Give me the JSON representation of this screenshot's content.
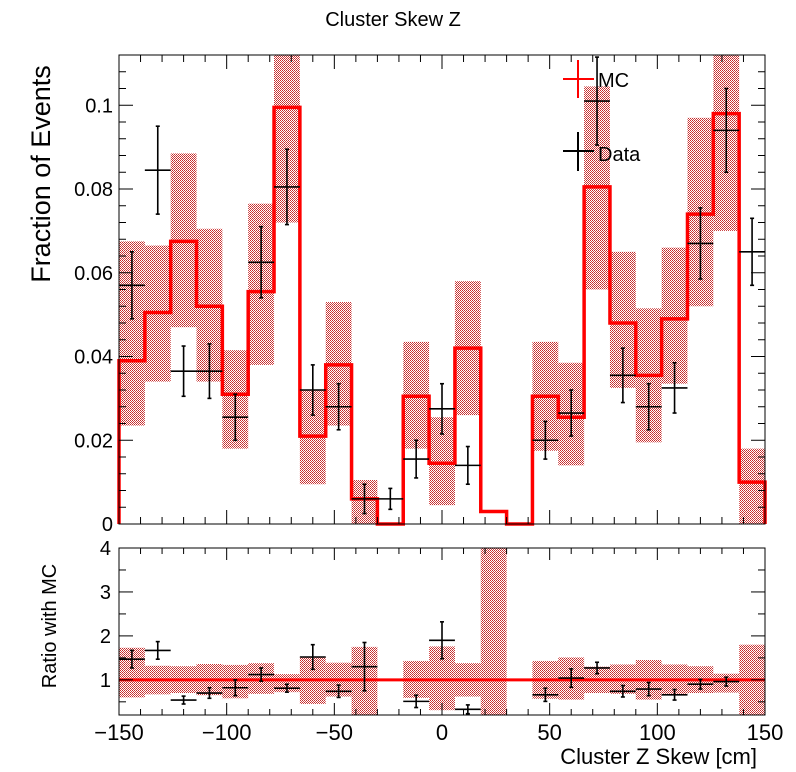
{
  "chart_data": {
    "type": "bar",
    "title": "Cluster Skew Z",
    "xlabel": "Cluster Z Skew [cm]",
    "xlim": [
      -150,
      150
    ],
    "bin_edges": [
      -150,
      -138,
      -126,
      -114,
      -102,
      -90,
      -78,
      -66,
      -54,
      -42,
      -30,
      -18,
      -6,
      6,
      18,
      30,
      42,
      54,
      66,
      78,
      90,
      102,
      114,
      126,
      138,
      150
    ],
    "main_panel": {
      "ylabel": "Fraction of Events",
      "ylim": [
        0,
        0.112
      ],
      "y_ticks": [
        0,
        0.02,
        0.04,
        0.06,
        0.08,
        0.1
      ],
      "y_tick_labels": [
        "0",
        "0.02",
        "0.04",
        "0.06",
        "0.08",
        "0.1"
      ],
      "legend_position": "top-right",
      "series": [
        {
          "name": "MC",
          "style": "histogram",
          "color": "#ff0000",
          "band_color": "#c02020",
          "values": [
            0.039,
            0.0505,
            0.0675,
            0.052,
            0.031,
            0.0555,
            0.0995,
            0.021,
            0.038,
            0.006,
            0.0,
            0.0305,
            0.0145,
            0.042,
            0.003,
            0.0,
            0.0305,
            0.0255,
            0.0805,
            0.048,
            0.0355,
            0.049,
            0.074,
            0.098,
            0.01
          ],
          "band_low": [
            0.0235,
            0.034,
            0.047,
            0.034,
            0.018,
            0.038,
            0.072,
            0.0095,
            0.0235,
            0.0,
            0.0,
            0.018,
            0.0045,
            0.026,
            0.0,
            0.0,
            0.0175,
            0.014,
            0.056,
            0.0325,
            0.0195,
            0.0335,
            0.052,
            0.07,
            0.0
          ],
          "band_high": [
            0.0675,
            0.0665,
            0.0885,
            0.0705,
            0.0415,
            0.0765,
            0.112,
            0.032,
            0.053,
            0.0105,
            0.0,
            0.0435,
            0.0255,
            0.058,
            0.0,
            0.0,
            0.0435,
            0.0385,
            0.1045,
            0.065,
            0.0515,
            0.066,
            0.097,
            0.112,
            0.018
          ]
        },
        {
          "name": "Data",
          "style": "errorbar",
          "color": "#000000",
          "x": [
            -144,
            -132,
            -120,
            -108,
            -96,
            -84,
            -72,
            -60,
            -48,
            -36,
            -24,
            -12,
            0,
            12,
            24,
            36,
            48,
            60,
            72,
            84,
            96,
            108,
            120,
            132,
            144
          ],
          "y": [
            0.057,
            0.0845,
            0.0365,
            0.0365,
            0.0255,
            0.0625,
            0.0805,
            0.032,
            0.028,
            0.006,
            0.006,
            0.0155,
            0.0275,
            0.014,
            null,
            null,
            0.02,
            0.0265,
            0.101,
            0.0355,
            0.028,
            0.0325,
            0.067,
            0.094,
            0.065
          ],
          "yerr": [
            0.008,
            0.0105,
            0.006,
            0.0065,
            0.0055,
            0.0085,
            0.009,
            0.006,
            0.0055,
            0.0035,
            0.0025,
            0.0045,
            0.006,
            0.0045,
            null,
            null,
            0.0045,
            0.0055,
            0.0105,
            0.0065,
            0.0055,
            0.006,
            0.0085,
            0.01,
            0.008
          ]
        }
      ]
    },
    "ratio_panel": {
      "ylabel": "Ratio with MC",
      "ylim": [
        0.2,
        4
      ],
      "y_ticks": [
        1,
        2,
        3,
        4
      ],
      "y_tick_labels": [
        "1",
        "2",
        "3",
        "4"
      ],
      "x_ticks": [
        -150,
        -100,
        -50,
        0,
        50,
        100,
        150
      ],
      "x_tick_labels": [
        "−150",
        "−100",
        "−50",
        "0",
        "50",
        "100",
        "150"
      ],
      "reference_line": 1,
      "band_low": [
        0.6,
        0.67,
        0.7,
        0.65,
        0.58,
        0.68,
        0.72,
        0.45,
        0.62,
        0.0,
        null,
        0.59,
        0.31,
        0.62,
        0.0,
        null,
        0.57,
        0.55,
        0.7,
        0.68,
        0.55,
        0.68,
        0.7,
        0.71,
        0.0
      ],
      "band_high": [
        1.73,
        1.32,
        1.31,
        1.36,
        1.34,
        1.38,
        1.13,
        1.52,
        1.39,
        1.75,
        null,
        1.43,
        1.76,
        1.38,
        4.0,
        3.3,
        1.43,
        1.51,
        1.3,
        1.35,
        1.45,
        1.35,
        1.31,
        1.14,
        1.8
      ],
      "ratio_x": [
        -144,
        -132,
        -120,
        -108,
        -96,
        -84,
        -72,
        -60,
        -48,
        -36,
        -12,
        0,
        12,
        48,
        60,
        72,
        84,
        96,
        108,
        120,
        132
      ],
      "ratio_y": [
        1.47,
        1.67,
        0.54,
        0.7,
        0.82,
        1.12,
        0.81,
        1.52,
        0.74,
        1.3,
        0.51,
        1.9,
        0.33,
        0.66,
        1.04,
        1.27,
        0.74,
        0.79,
        0.66,
        0.9,
        0.96
      ],
      "ratio_err": [
        0.2,
        0.2,
        0.09,
        0.12,
        0.18,
        0.15,
        0.09,
        0.28,
        0.14,
        0.55,
        0.14,
        0.42,
        0.1,
        0.15,
        0.21,
        0.13,
        0.13,
        0.15,
        0.12,
        0.11,
        0.1
      ]
    }
  }
}
